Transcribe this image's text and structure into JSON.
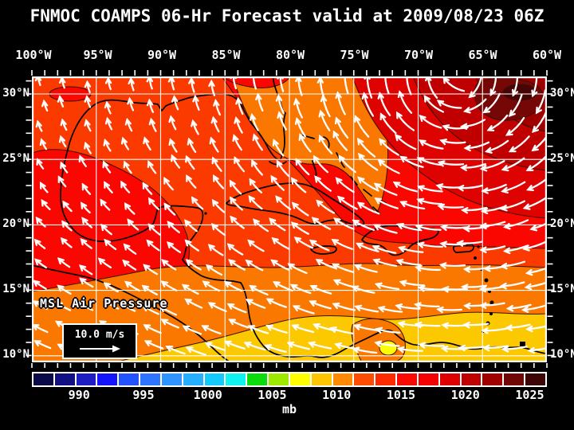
{
  "title": "FNMOC COAMPS 06-Hr Forecast valid at 2009/08/23 06Z",
  "axes": {
    "top_labels": [
      "100°W",
      "95°W",
      "90°W",
      "85°W",
      "80°W",
      "75°W",
      "70°W",
      "65°W",
      "60°W"
    ],
    "left_labels": [
      "30°N",
      "25°N",
      "20°N",
      "15°N",
      "10°N"
    ],
    "right_labels": [
      "30°N",
      "25°N",
      "20°N",
      "15°N",
      "10°N"
    ]
  },
  "overlay": {
    "field_label": "MSL Air Pressure",
    "wind_speed_label": "10.0 m/s"
  },
  "colorbar": {
    "unit": "mb",
    "tick_labels": [
      "990",
      "995",
      "1000",
      "1005",
      "1010",
      "1015",
      "1020",
      "1025"
    ],
    "segment_colors": [
      "#0a0a46",
      "#111183",
      "#1d1dc2",
      "#1414fa",
      "#2353ff",
      "#2e74ff",
      "#2f94ff",
      "#26aeff",
      "#14c9fb",
      "#0ff2f0",
      "#0cdc0c",
      "#9fe800",
      "#fdfd02",
      "#fdc502",
      "#fd8a02",
      "#fd4d02",
      "#fd2c00",
      "#fb0a04",
      "#f40202",
      "#dd0101",
      "#bf0101",
      "#a00000",
      "#700606",
      "#3d0505"
    ]
  },
  "palette": {
    "base": "#fb3a00",
    "red": "#f90700",
    "ring2": "#de0200",
    "ring3": "#c00000",
    "ring4": "#9e0000",
    "core": "#750707",
    "core2": "#470404",
    "orange": "#fb7800",
    "gold": "#fcc900",
    "yellow": "#fdfd05",
    "contour": "#381000",
    "coast": "#000000",
    "grid": "#ffffff",
    "arrow": "#ffffff"
  },
  "chart_data": {
    "type": "heatmap",
    "title": "FNMOC COAMPS 06-Hr Forecast valid at 2009/08/23 06Z",
    "field": "MSL Air Pressure",
    "unit": "mb",
    "colorbar_ticks": [
      990,
      995,
      1000,
      1005,
      1010,
      1015,
      1020,
      1025
    ],
    "lon_ticks_deg_west": [
      100,
      95,
      90,
      85,
      80,
      75,
      70,
      65,
      60
    ],
    "lat_ticks_deg_north": [
      30,
      25,
      20,
      15,
      10
    ],
    "wind_reference_vector": "10.0 m/s",
    "legend_position": "bottom"
  }
}
